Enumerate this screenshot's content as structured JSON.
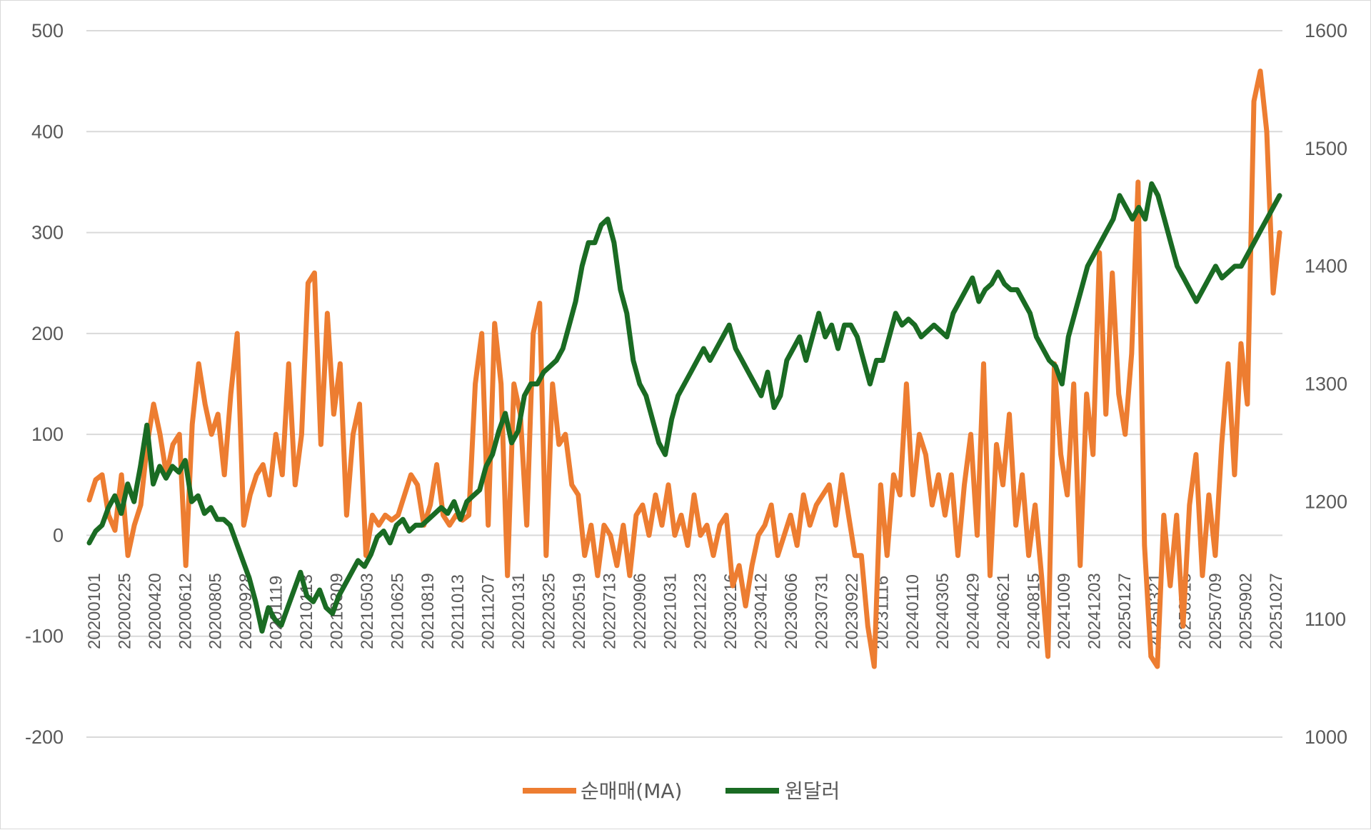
{
  "chart_data": {
    "type": "line",
    "title": "",
    "grid": true,
    "legend_position": "bottom",
    "left_axis": {
      "ylim": [
        -200,
        500
      ],
      "ticks": [
        -200,
        -100,
        0,
        100,
        200,
        300,
        400,
        500
      ]
    },
    "right_axis": {
      "ylim": [
        1000,
        1600
      ],
      "ticks": [
        1000,
        1100,
        1200,
        1300,
        1400,
        1500,
        1600
      ]
    },
    "x_labels": [
      "20200101",
      "20200225",
      "20200420",
      "20200612",
      "20200805",
      "20200928",
      "20201119",
      "20210113",
      "20210309",
      "20210503",
      "20210625",
      "20210819",
      "20211013",
      "20211207",
      "20220131",
      "20220325",
      "20220519",
      "20220713",
      "20220906",
      "20221031",
      "20221223",
      "20230216",
      "20230412",
      "20230606",
      "20230731",
      "20230922",
      "20231116",
      "20240110",
      "20240305",
      "20240429",
      "20240621",
      "20240815",
      "20241009",
      "20241203",
      "20250127",
      "20250321",
      "20250515",
      "20250709",
      "20250902",
      "20251027"
    ],
    "series": [
      {
        "name": "순매매(MA)",
        "axis": "left",
        "color": "#ed7d31",
        "values": [
          35,
          55,
          60,
          20,
          5,
          60,
          -20,
          10,
          30,
          90,
          130,
          100,
          60,
          90,
          100,
          -30,
          110,
          170,
          130,
          100,
          120,
          60,
          140,
          200,
          10,
          40,
          60,
          70,
          40,
          100,
          60,
          170,
          50,
          100,
          250,
          260,
          90,
          220,
          120,
          170,
          20,
          100,
          130,
          -20,
          20,
          10,
          20,
          15,
          20,
          40,
          60,
          50,
          10,
          30,
          70,
          20,
          10,
          20,
          15,
          20,
          150,
          200,
          10,
          210,
          150,
          -40,
          150,
          120,
          10,
          200,
          230,
          -20,
          150,
          90,
          100,
          50,
          40,
          -20,
          10,
          -40,
          10,
          0,
          -30,
          10,
          -40,
          20,
          30,
          0,
          40,
          10,
          50,
          0,
          20,
          -10,
          40,
          0,
          10,
          -20,
          10,
          20,
          -50,
          -30,
          -70,
          -30,
          0,
          10,
          30,
          -20,
          0,
          20,
          -10,
          40,
          10,
          30,
          40,
          50,
          10,
          60,
          20,
          -20,
          -20,
          -90,
          -130,
          50,
          -20,
          60,
          40,
          150,
          40,
          100,
          80,
          30,
          60,
          20,
          60,
          -20,
          50,
          100,
          0,
          170,
          -40,
          90,
          50,
          120,
          10,
          60,
          -20,
          30,
          -40,
          -120,
          170,
          80,
          40,
          150,
          -30,
          140,
          80,
          280,
          120,
          260,
          140,
          100,
          180,
          350,
          -10,
          -120,
          -130,
          20,
          -50,
          20,
          -90,
          30,
          80,
          -40,
          40,
          -20,
          90,
          170,
          60,
          190,
          130,
          430,
          460,
          400,
          240,
          300
        ],
        "x_start": "20200101",
        "x_end": "20251027"
      },
      {
        "name": "원달러",
        "axis": "right",
        "color": "#1a6b23",
        "values": [
          1165,
          1175,
          1180,
          1195,
          1205,
          1190,
          1215,
          1200,
          1230,
          1265,
          1215,
          1230,
          1220,
          1230,
          1225,
          1235,
          1200,
          1205,
          1190,
          1195,
          1185,
          1185,
          1180,
          1165,
          1150,
          1135,
          1115,
          1090,
          1110,
          1100,
          1095,
          1110,
          1125,
          1140,
          1120,
          1115,
          1125,
          1110,
          1105,
          1120,
          1130,
          1140,
          1150,
          1145,
          1155,
          1170,
          1175,
          1165,
          1180,
          1185,
          1175,
          1180,
          1180,
          1185,
          1190,
          1195,
          1190,
          1200,
          1185,
          1200,
          1205,
          1210,
          1230,
          1240,
          1260,
          1275,
          1250,
          1260,
          1290,
          1300,
          1300,
          1310,
          1315,
          1320,
          1330,
          1350,
          1370,
          1400,
          1420,
          1420,
          1435,
          1440,
          1420,
          1380,
          1360,
          1320,
          1300,
          1290,
          1270,
          1250,
          1240,
          1270,
          1290,
          1300,
          1310,
          1320,
          1330,
          1320,
          1330,
          1340,
          1350,
          1330,
          1320,
          1310,
          1300,
          1290,
          1310,
          1280,
          1290,
          1320,
          1330,
          1340,
          1320,
          1340,
          1360,
          1340,
          1350,
          1330,
          1350,
          1350,
          1340,
          1320,
          1300,
          1320,
          1320,
          1340,
          1360,
          1350,
          1355,
          1350,
          1340,
          1345,
          1350,
          1345,
          1340,
          1360,
          1370,
          1380,
          1390,
          1370,
          1380,
          1385,
          1395,
          1385,
          1380,
          1380,
          1370,
          1360,
          1340,
          1330,
          1320,
          1315,
          1300,
          1340,
          1360,
          1380,
          1400,
          1410,
          1420,
          1430,
          1440,
          1460,
          1450,
          1440,
          1450,
          1440,
          1470,
          1460,
          1440,
          1420,
          1400,
          1390,
          1380,
          1370,
          1380,
          1390,
          1400,
          1390,
          1395,
          1400,
          1400,
          1410,
          1420,
          1430,
          1440,
          1450,
          1460
        ],
        "x_start": "20200101",
        "x_end": "20251027"
      }
    ]
  }
}
